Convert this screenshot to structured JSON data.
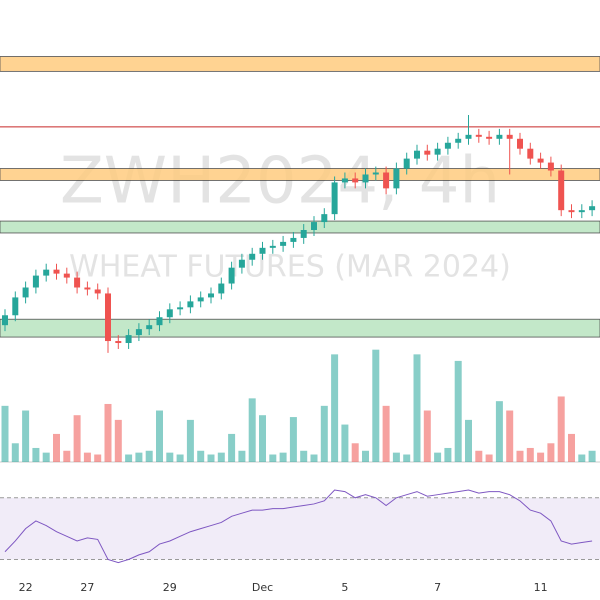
{
  "chart_data": {
    "type": "candlestick",
    "watermark_symbol": "ZWH2024, 4h",
    "watermark_name": "WHEAT FUTURES (MAR 2024)",
    "categories": [
      null,
      null,
      "22",
      null,
      null,
      null,
      null,
      null,
      "27",
      null,
      null,
      null,
      null,
      null,
      null,
      null,
      "29",
      null,
      null,
      null,
      null,
      null,
      null,
      null,
      null,
      "Dec",
      null,
      null,
      null,
      null,
      null,
      null,
      null,
      "5",
      null,
      null,
      null,
      null,
      null,
      null,
      null,
      null,
      "7",
      null,
      null,
      null,
      null,
      null,
      null,
      null,
      null,
      null,
      "11",
      null,
      null,
      null,
      null,
      null
    ],
    "open": [
      573,
      575.5,
      580,
      582.5,
      585.5,
      587,
      586,
      585,
      582.5,
      582,
      581,
      569,
      568.5,
      570.5,
      572,
      573,
      575,
      577,
      577.5,
      579,
      580,
      581,
      583.5,
      587.5,
      589.5,
      591,
      592.5,
      593,
      594,
      595,
      597,
      599,
      601,
      609,
      610,
      609,
      611,
      611.5,
      607.5,
      612.5,
      615,
      617,
      616,
      617.5,
      619,
      620,
      621,
      620.5,
      620,
      621,
      620,
      617.5,
      615,
      614,
      612,
      602,
      601.5,
      602
    ],
    "high": [
      577,
      581.5,
      584,
      587,
      588.5,
      588.5,
      587.5,
      586.5,
      584,
      583.5,
      582.5,
      570.5,
      572,
      573.5,
      574.5,
      576.5,
      578.5,
      579,
      580.5,
      581.5,
      582.5,
      585,
      589,
      591,
      592.5,
      594,
      594.5,
      595.5,
      596.5,
      598.5,
      600.5,
      602.5,
      610.5,
      611.5,
      611.5,
      612.5,
      613,
      613,
      614,
      616.5,
      618.5,
      618.5,
      619,
      620.5,
      621.5,
      626,
      622.5,
      622,
      622.5,
      622.5,
      621.5,
      619,
      616.5,
      615.5,
      613.5,
      603.5,
      603.5,
      604.5
    ],
    "low": [
      571.5,
      574,
      578.5,
      581,
      584,
      584.5,
      583.5,
      581,
      580.5,
      579.5,
      566,
      567,
      567,
      569,
      570.5,
      571.5,
      573.5,
      575.5,
      576,
      577.5,
      578.5,
      579.5,
      582,
      586,
      588,
      589.5,
      591,
      591.5,
      592.5,
      593.5,
      595.5,
      597.5,
      599.5,
      607.5,
      607.5,
      607.5,
      609.5,
      606,
      606,
      611,
      613.5,
      614.5,
      614.5,
      616,
      617.5,
      618.5,
      619,
      618.5,
      618.5,
      611,
      616,
      613.5,
      612.5,
      610.5,
      600.5,
      600,
      600,
      600.5
    ],
    "close": [
      575.5,
      580,
      582.5,
      585.5,
      587,
      586,
      585,
      582.5,
      582,
      581,
      569,
      568.5,
      570.5,
      572,
      573,
      575,
      577,
      577.5,
      579,
      580,
      581,
      583.5,
      587.5,
      589.5,
      591,
      592.5,
      593,
      594,
      595,
      597,
      599,
      601,
      609,
      610,
      609,
      611,
      611.5,
      607.5,
      612.5,
      615,
      617,
      616,
      617.5,
      619,
      620,
      621,
      620.5,
      620,
      621,
      620,
      617.5,
      615,
      614,
      612,
      602,
      601.5,
      602,
      603
    ],
    "volume": [
      60,
      20,
      55,
      15,
      10,
      30,
      12,
      50,
      10,
      8,
      62,
      45,
      8,
      10,
      12,
      55,
      10,
      8,
      45,
      12,
      8,
      10,
      30,
      12,
      68,
      50,
      8,
      10,
      48,
      12,
      8,
      60,
      115,
      40,
      20,
      12,
      120,
      60,
      10,
      8,
      115,
      55,
      10,
      15,
      108,
      45,
      12,
      8,
      65,
      55,
      12,
      15,
      10,
      20,
      70,
      30,
      8,
      12
    ],
    "rsi": [
      35,
      42,
      50,
      55,
      52,
      48,
      45,
      42,
      44,
      43,
      30,
      28,
      30,
      33,
      35,
      40,
      42,
      45,
      48,
      50,
      52,
      54,
      58,
      60,
      62,
      62,
      63,
      63,
      64,
      65,
      66,
      68,
      75,
      74,
      70,
      72,
      70,
      65,
      70,
      72,
      74,
      71,
      72,
      73,
      74,
      75,
      73,
      74,
      74,
      72,
      68,
      62,
      60,
      55,
      42,
      40,
      41,
      42
    ],
    "ylim": [
      568,
      655
    ],
    "volume_lim": [
      0,
      125
    ],
    "rsi_lim": [
      18,
      88
    ],
    "rsi_bands": [
      30,
      70
    ],
    "up_color": "#26a69a",
    "down_color": "#ef5350",
    "zones": [
      {
        "from": 637,
        "to": 640.75,
        "color": "#ffcc80"
      },
      {
        "from": 609.5,
        "to": 612.5,
        "color": "#ffcc80"
      },
      {
        "from": 596.25,
        "to": 599.25,
        "color": "#b9e4c0"
      },
      {
        "from": 570,
        "to": 574.5,
        "color": "#b9e4c0"
      }
    ],
    "levels": [
      {
        "value": 623,
        "color": "#c62828"
      }
    ]
  }
}
